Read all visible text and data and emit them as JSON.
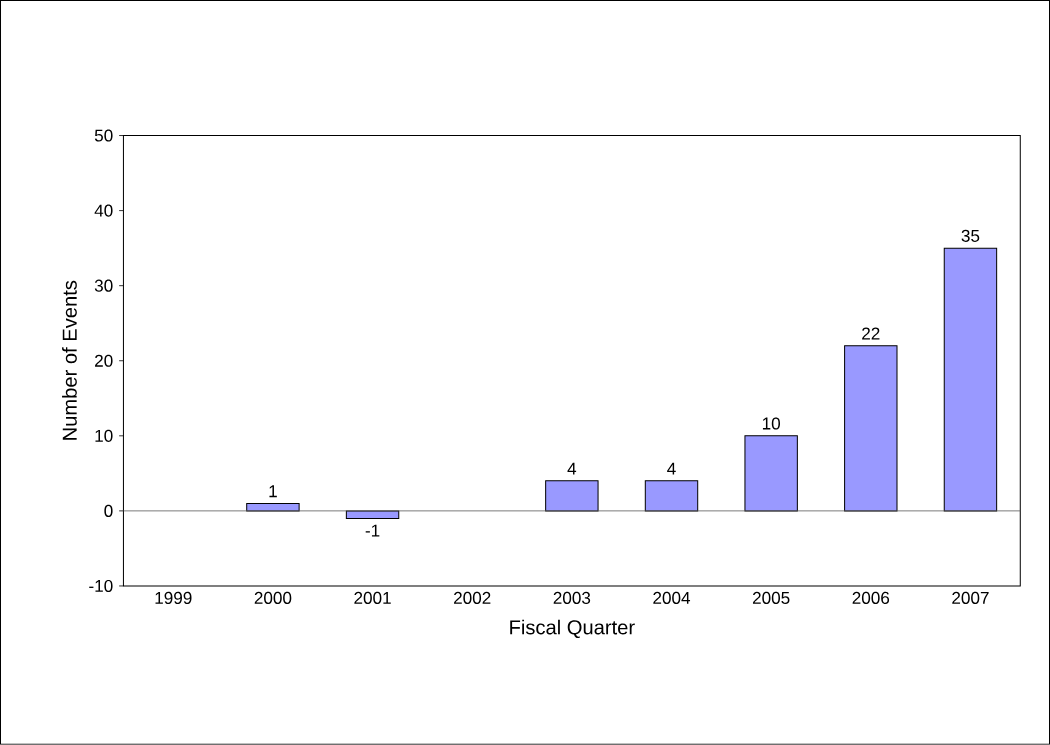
{
  "chart_data": {
    "type": "bar",
    "categories": [
      "1999",
      "2000",
      "2001",
      "2002",
      "2003",
      "2004",
      "2005",
      "2006",
      "2007"
    ],
    "values": [
      null,
      1,
      -1,
      null,
      4,
      4,
      10,
      22,
      35
    ],
    "color": "#9999ff",
    "ylim": [
      -10,
      50
    ],
    "yticks": [
      -10,
      0,
      10,
      20,
      30,
      40,
      50
    ],
    "xlabel": "Fiscal Quarter",
    "ylabel": "Number of Events",
    "data_labels": true
  }
}
